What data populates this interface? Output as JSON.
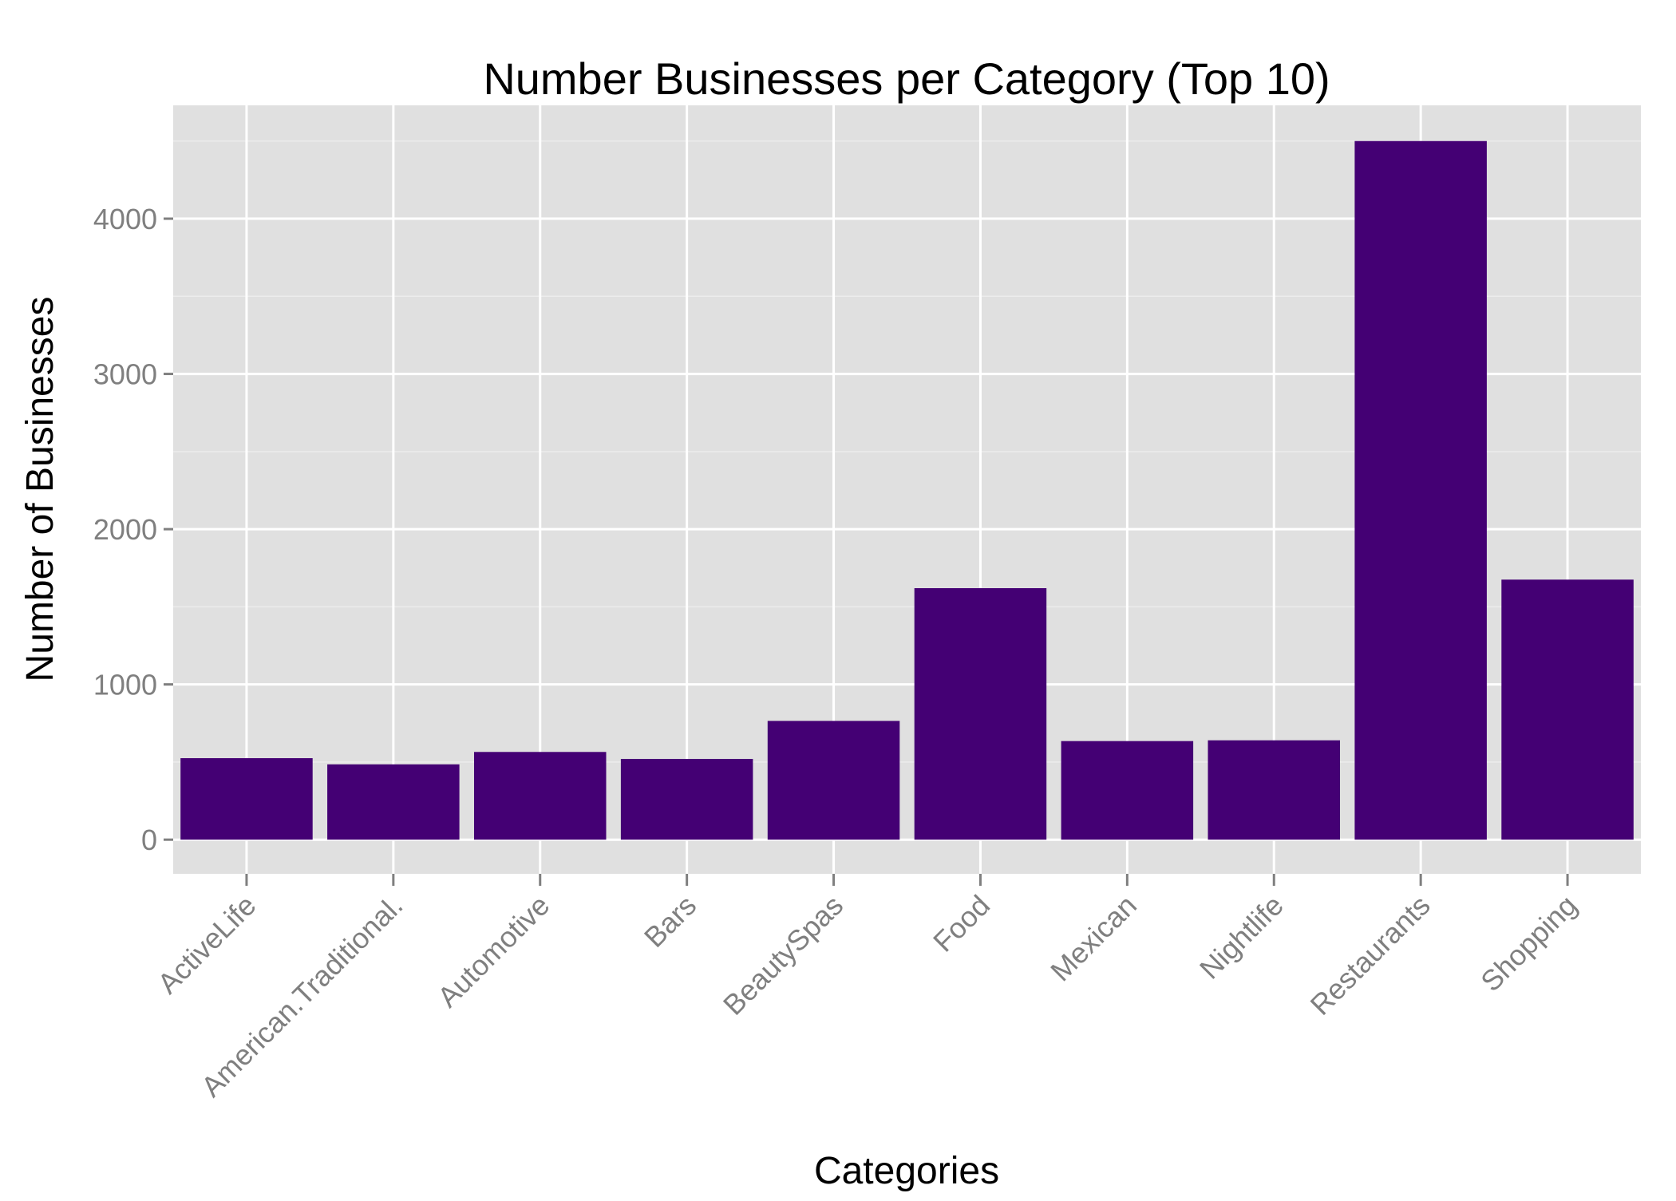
{
  "chart_data": {
    "type": "bar",
    "title": "Number Businesses per Category (Top 10)",
    "xlabel": "Categories",
    "ylabel": "Number of Businesses",
    "categories": [
      "ActiveLife",
      "American.Traditional.",
      "Automotive",
      "Bars",
      "BeautySpas",
      "Food",
      "Mexican",
      "Nightlife",
      "Restaurants",
      "Shopping"
    ],
    "values": [
      525,
      485,
      565,
      520,
      765,
      1620,
      635,
      640,
      4500,
      1675
    ],
    "ylim": [
      -220,
      4730
    ],
    "yticks": [
      0,
      1000,
      2000,
      3000,
      4000
    ],
    "ytick_labels": [
      "0",
      "1000",
      "2000",
      "3000",
      "4000"
    ],
    "minor_yticks": [
      500,
      1500,
      2500,
      3500,
      4500
    ],
    "grid": true,
    "legend": "none",
    "colors": {
      "bar": "#440074",
      "panel": "#e0e0e0",
      "grid_major": "#ffffff",
      "grid_minor": "#ececec",
      "tick": "#7f7f7f"
    }
  }
}
